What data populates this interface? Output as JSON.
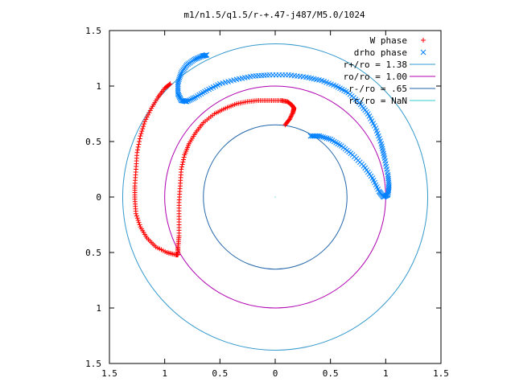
{
  "chart_data": {
    "type": "scatter",
    "title": "m1/n1.5/q1.5/r-+.47-j487/M5.0/1024",
    "xlabel": "",
    "ylabel": "",
    "xlim": [
      -1.5,
      1.5
    ],
    "ylim": [
      -1.5,
      1.5
    ],
    "x_ticks": [
      "1.5",
      "1",
      "0.5",
      "0",
      "0.5",
      "1",
      "1.5"
    ],
    "y_ticks": [
      "1.5",
      "1",
      "0.5",
      "0",
      "0.5",
      "1",
      "1.5"
    ],
    "tick_values": [
      -1.5,
      -1,
      -0.5,
      0,
      0.5,
      1,
      1.5
    ],
    "grid": false,
    "legend_position": "top-right",
    "series": [
      {
        "name": "W phase",
        "marker": "plus",
        "color": "#ff0000",
        "points": [
          [
            0.09,
            0.65
          ],
          [
            0.13,
            0.7
          ],
          [
            0.16,
            0.76
          ],
          [
            0.17,
            0.8
          ],
          [
            0.15,
            0.83
          ],
          [
            0.11,
            0.86
          ],
          [
            0.05,
            0.87
          ],
          [
            -0.05,
            0.87
          ],
          [
            -0.15,
            0.87
          ],
          [
            -0.25,
            0.86
          ],
          [
            -0.35,
            0.84
          ],
          [
            -0.45,
            0.8
          ],
          [
            -0.55,
            0.75
          ],
          [
            -0.65,
            0.67
          ],
          [
            -0.72,
            0.58
          ],
          [
            -0.78,
            0.48
          ],
          [
            -0.82,
            0.38
          ],
          [
            -0.85,
            0.25
          ],
          [
            -0.86,
            0.1
          ],
          [
            -0.87,
            -0.05
          ],
          [
            -0.87,
            -0.2
          ],
          [
            -0.87,
            -0.35
          ],
          [
            -0.88,
            -0.45
          ],
          [
            -0.88,
            -0.52
          ],
          [
            -0.9,
            -0.52
          ],
          [
            -0.98,
            -0.5
          ],
          [
            -1.08,
            -0.45
          ],
          [
            -1.16,
            -0.37
          ],
          [
            -1.22,
            -0.27
          ],
          [
            -1.26,
            -0.15
          ],
          [
            -1.27,
            -0.02
          ],
          [
            -1.27,
            0.1
          ],
          [
            -1.26,
            0.25
          ],
          [
            -1.25,
            0.4
          ],
          [
            -1.22,
            0.55
          ],
          [
            -1.18,
            0.68
          ],
          [
            -1.12,
            0.8
          ],
          [
            -1.06,
            0.9
          ],
          [
            -1.0,
            0.98
          ],
          [
            -0.95,
            1.02
          ]
        ]
      },
      {
        "name": "drho phase",
        "marker": "cross",
        "color": "#0080ff",
        "points": [
          [
            0.32,
            0.55
          ],
          [
            0.4,
            0.55
          ],
          [
            0.5,
            0.52
          ],
          [
            0.6,
            0.46
          ],
          [
            0.7,
            0.38
          ],
          [
            0.8,
            0.28
          ],
          [
            0.88,
            0.17
          ],
          [
            0.94,
            0.05
          ],
          [
            0.98,
            0.0
          ],
          [
            1.02,
            0.02
          ],
          [
            1.03,
            0.1
          ],
          [
            1.02,
            0.2
          ],
          [
            0.99,
            0.35
          ],
          [
            0.96,
            0.48
          ],
          [
            0.91,
            0.62
          ],
          [
            0.84,
            0.75
          ],
          [
            0.76,
            0.85
          ],
          [
            0.66,
            0.94
          ],
          [
            0.55,
            1.0
          ],
          [
            0.42,
            1.05
          ],
          [
            0.28,
            1.08
          ],
          [
            0.12,
            1.1
          ],
          [
            -0.05,
            1.1
          ],
          [
            -0.2,
            1.09
          ],
          [
            -0.35,
            1.06
          ],
          [
            -0.5,
            1.02
          ],
          [
            -0.62,
            0.96
          ],
          [
            -0.72,
            0.9
          ],
          [
            -0.8,
            0.86
          ],
          [
            -0.85,
            0.87
          ],
          [
            -0.88,
            0.93
          ],
          [
            -0.88,
            1.03
          ],
          [
            -0.85,
            1.12
          ],
          [
            -0.8,
            1.19
          ],
          [
            -0.73,
            1.24
          ],
          [
            -0.66,
            1.27
          ],
          [
            -0.62,
            1.28
          ]
        ]
      },
      {
        "name": "r+/ro = 1.38",
        "marker": "line",
        "color": "#3399cc",
        "radius": 1.38
      },
      {
        "name": "ro/ro = 1.00",
        "marker": "line",
        "color": "#b000b0",
        "radius": 1.0
      },
      {
        "name": "r-/ro = .65",
        "marker": "line",
        "color": "#2266aa",
        "radius": 0.65
      },
      {
        "name": "rc/ro = NaN",
        "marker": "line",
        "color": "#33cccc"
      }
    ]
  }
}
